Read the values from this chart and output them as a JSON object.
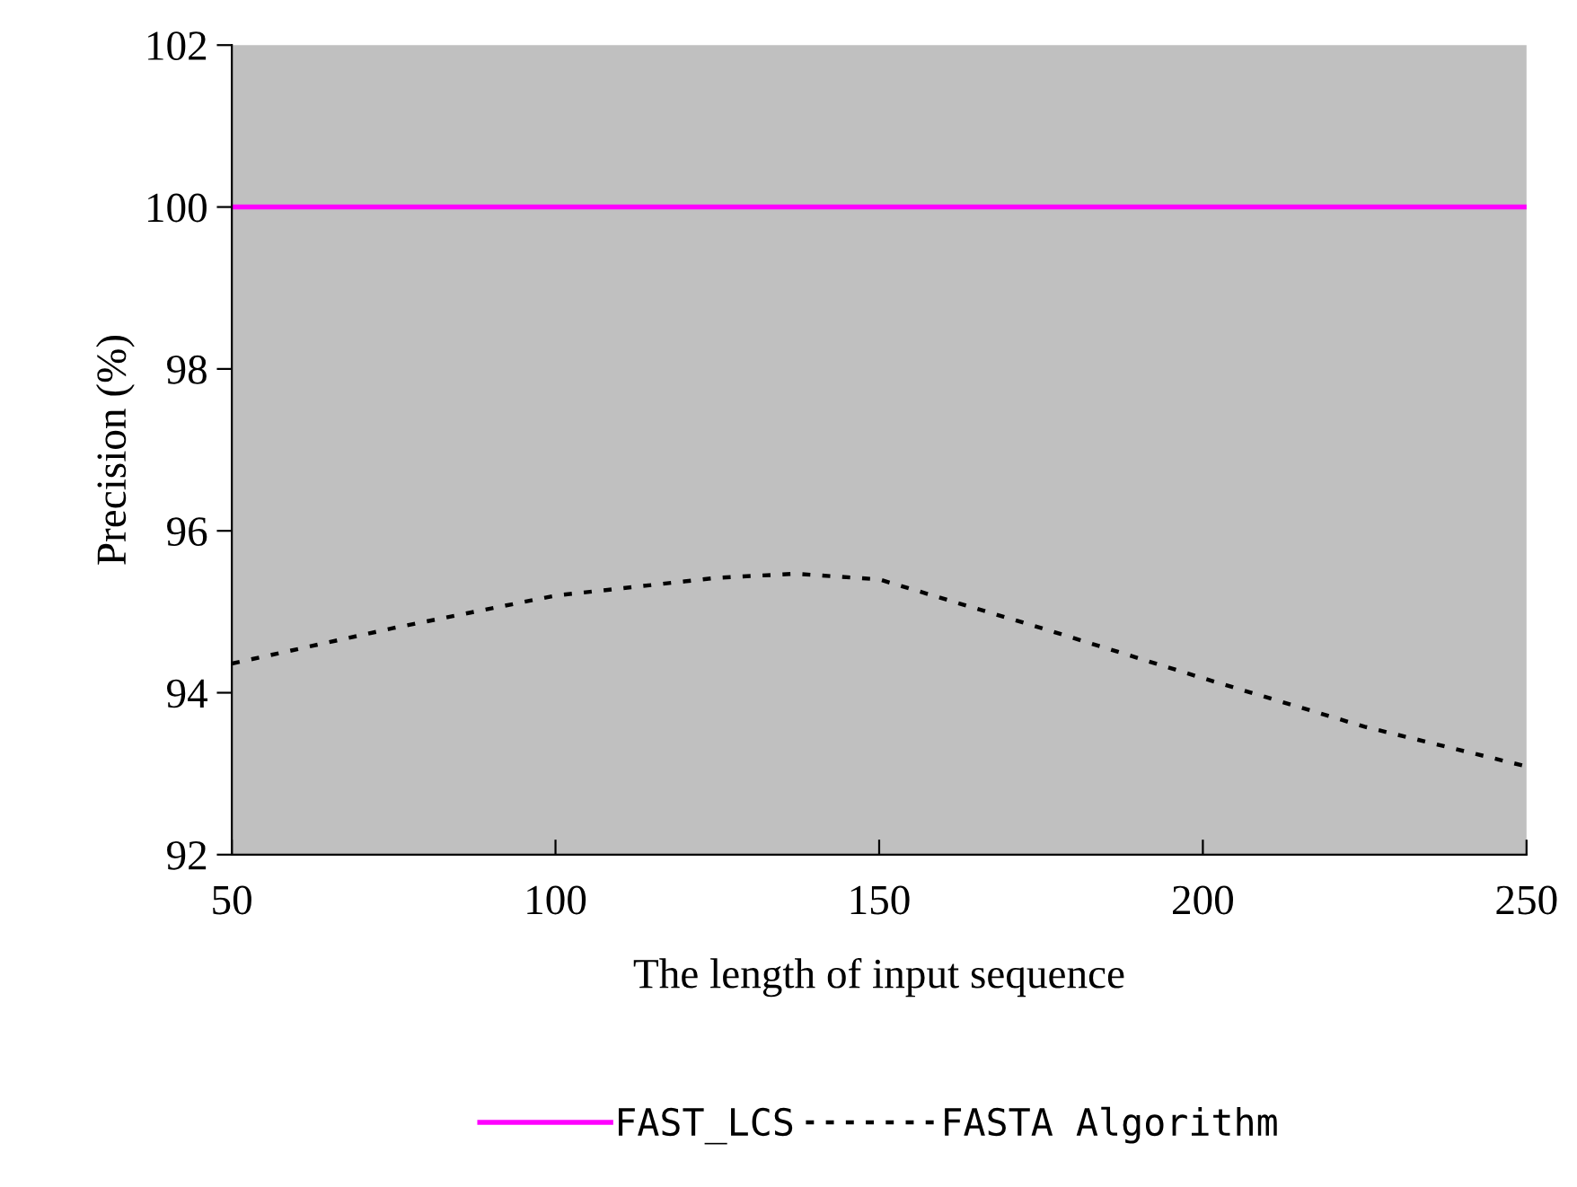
{
  "chart_data": {
    "type": "line",
    "xlabel": "The length of input sequence",
    "ylabel": "Precision (%)",
    "x": [
      50,
      75,
      100,
      125,
      137,
      150,
      175,
      200,
      225,
      250
    ],
    "series": [
      {
        "name": "FAST_LCS",
        "color": "#ff00ff",
        "line_style": "solid",
        "values": [
          100,
          100,
          100,
          100,
          100,
          100,
          100,
          100,
          100,
          100
        ]
      },
      {
        "name": "FASTA Algorithm",
        "color": "#000000",
        "line_style": "dotted",
        "values": [
          94.36,
          94.8,
          95.2,
          95.42,
          95.47,
          95.4,
          94.8,
          94.18,
          93.58,
          93.09
        ]
      }
    ],
    "xlim": [
      50,
      250
    ],
    "xticks": [
      50,
      100,
      150,
      200,
      250
    ],
    "ylim": [
      92,
      102
    ],
    "yticks": [
      92,
      94,
      96,
      98,
      100,
      102
    ],
    "grid": false,
    "legend": "bottom",
    "marker": "none"
  }
}
